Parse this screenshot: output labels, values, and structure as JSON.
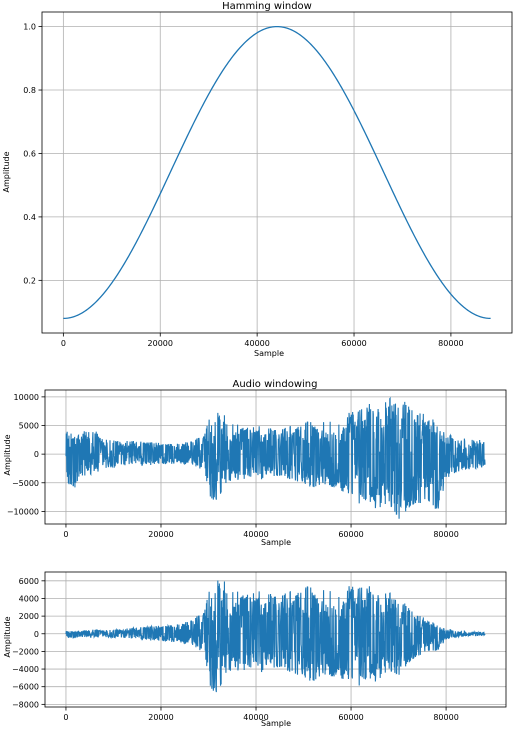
{
  "figure": {
    "series_color": "#1f77b4",
    "grid": true
  },
  "chart_data": [
    {
      "type": "line",
      "title": "Hamming window",
      "xlabel": "Sample",
      "ylabel": "Amplitude",
      "xlim": [
        -4410,
        92610
      ],
      "ylim": [
        0.034,
        1.046
      ],
      "xticks": [
        0,
        20000,
        40000,
        60000,
        80000
      ],
      "yticks": [
        0.2,
        0.4,
        0.6,
        0.8,
        1.0
      ],
      "ytick_labels": [
        "0.2",
        "0.4",
        "0.6",
        "0.8",
        "1.0"
      ],
      "series": [
        {
          "function": "hamming",
          "n_samples": 88200,
          "alpha": 0.54,
          "beta": 0.46,
          "color": "#1f77b4"
        }
      ]
    },
    {
      "type": "line",
      "title": "Audio windowing",
      "xlabel": "Sample",
      "ylabel": "Amplitude",
      "xlim": [
        -4410,
        92610
      ],
      "ylim": [
        -12200,
        11200
      ],
      "xticks": [
        0,
        20000,
        40000,
        60000,
        80000
      ],
      "yticks": [
        -10000,
        -5000,
        0,
        5000,
        10000
      ],
      "ytick_labels": [
        "−10000",
        "−5000",
        "0",
        "5000",
        "10000"
      ],
      "series": [
        {
          "kind": "signal-envelope",
          "n_samples": 88200,
          "color": "#1f77b4",
          "envelope_x": [
            0,
            1500,
            3000,
            5000,
            8000,
            12000,
            16000,
            20000,
            24000,
            27000,
            29000,
            30000,
            31000,
            32500,
            35000,
            38000,
            41000,
            44000,
            48000,
            52000,
            55000,
            58000,
            60000,
            62000,
            64000,
            66000,
            68000,
            70000,
            72000,
            74000,
            76000,
            78000,
            80000,
            82000,
            84000,
            86000,
            88200
          ],
          "upper": [
            4800,
            3200,
            3500,
            5200,
            2800,
            2400,
            2200,
            2000,
            1800,
            2500,
            3500,
            6500,
            9500,
            7500,
            5500,
            4800,
            5200,
            4200,
            5000,
            6000,
            5500,
            6500,
            7500,
            8000,
            9000,
            8500,
            10000,
            8500,
            9500,
            8000,
            6500,
            6000,
            3800,
            3200,
            2800,
            2500,
            2500
          ],
          "lower": [
            -4200,
            -6800,
            -4000,
            -3800,
            -2600,
            -2200,
            -2000,
            -1800,
            -1600,
            -2000,
            -3000,
            -7000,
            -9000,
            -7000,
            -5000,
            -4200,
            -4500,
            -3800,
            -4500,
            -6000,
            -5500,
            -6500,
            -7500,
            -9000,
            -8500,
            -10500,
            -9000,
            -11500,
            -10000,
            -9000,
            -8000,
            -11000,
            -4500,
            -3200,
            -2800,
            -2600,
            -2200
          ]
        }
      ]
    },
    {
      "type": "line",
      "title": "",
      "xlabel": "Sample",
      "ylabel": "Amplitude",
      "xlim": [
        -4410,
        92610
      ],
      "ylim": [
        -8300,
        7000
      ],
      "xticks": [
        0,
        20000,
        40000,
        60000,
        80000
      ],
      "yticks": [
        -8000,
        -6000,
        -4000,
        -2000,
        0,
        2000,
        4000,
        6000
      ],
      "ytick_labels": [
        "−8000",
        "−6000",
        "−4000",
        "−2000",
        "0",
        "2000",
        "4000",
        "6000"
      ],
      "series": [
        {
          "kind": "windowed-signal",
          "derived_from": "series 2 × Hamming window",
          "n_samples": 88200,
          "color": "#1f77b4"
        }
      ]
    }
  ]
}
